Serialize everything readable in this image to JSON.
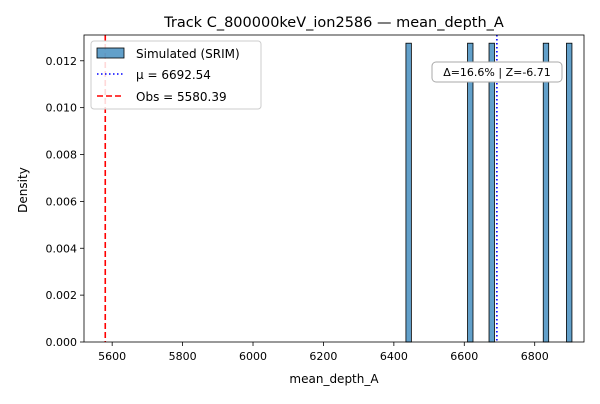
{
  "chart_data": {
    "type": "histogram",
    "title": "Track C_800000keV_ion2586 — mean_depth_A",
    "xlabel": "mean_depth_A",
    "ylabel": "Density",
    "xlim": [
      5520,
      6940
    ],
    "ylim": [
      0,
      0.0131
    ],
    "xticks": [
      5600,
      5800,
      6000,
      6200,
      6400,
      6600,
      6800
    ],
    "yticks": [
      0.0,
      0.002,
      0.004,
      0.006,
      0.008,
      0.01,
      0.012
    ],
    "ytick_labels": [
      "0.000",
      "0.002",
      "0.004",
      "0.006",
      "0.008",
      "0.010",
      "0.012"
    ],
    "bar_width": 15.5,
    "bars": [
      {
        "x": 6442,
        "density": 0.01275
      },
      {
        "x": 6617,
        "density": 0.01275
      },
      {
        "x": 6678,
        "density": 0.01275
      },
      {
        "x": 6832,
        "density": 0.01275
      },
      {
        "x": 6898,
        "density": 0.01275
      }
    ],
    "bar_color": "#1f77b4",
    "mean_line": {
      "x": 6692.54,
      "color": "#0000ff",
      "style": "dotted"
    },
    "obs_line": {
      "x": 5580.39,
      "color": "#ff0000",
      "style": "dashed"
    },
    "legend": {
      "position": "top-left",
      "entries": [
        {
          "label": "Simulated (SRIM)",
          "kind": "patch"
        },
        {
          "label": "μ = 6692.54",
          "kind": "mean"
        },
        {
          "label": "Obs = 5580.39",
          "kind": "obs"
        }
      ]
    },
    "annotation": {
      "text": "Δ=16.6% | Z=-6.71",
      "position": "top-right"
    },
    "grid": false
  }
}
